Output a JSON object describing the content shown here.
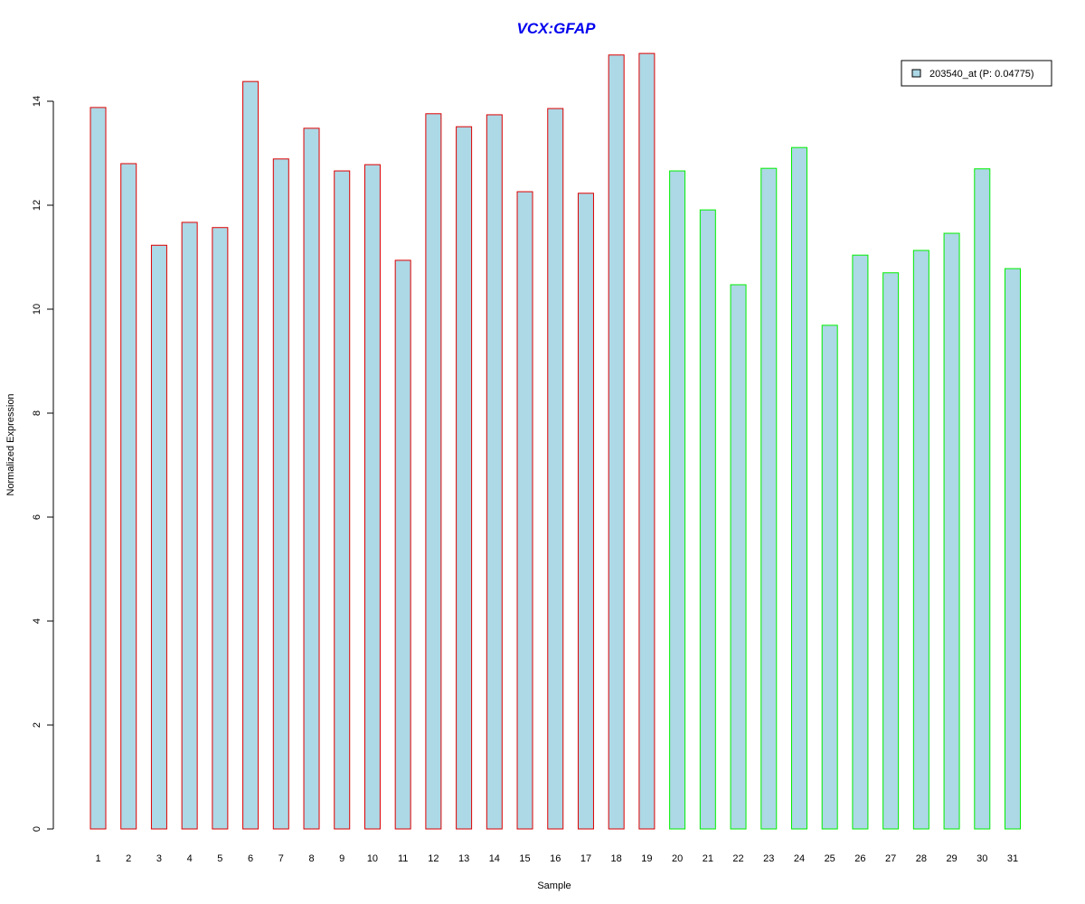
{
  "chart_data": {
    "type": "bar",
    "title": "VCX:GFAP",
    "xlabel": "Sample",
    "ylabel": "Normalized Expression",
    "ylim": [
      0,
      15
    ],
    "yticks": [
      0,
      2,
      4,
      6,
      8,
      10,
      12,
      14
    ],
    "categories": [
      "1",
      "2",
      "3",
      "4",
      "5",
      "6",
      "7",
      "8",
      "9",
      "10",
      "11",
      "12",
      "13",
      "14",
      "15",
      "16",
      "17",
      "18",
      "19",
      "20",
      "21",
      "22",
      "23",
      "24",
      "25",
      "26",
      "27",
      "28",
      "29",
      "30",
      "31"
    ],
    "values": [
      13.88,
      12.8,
      11.23,
      11.67,
      11.57,
      14.38,
      12.89,
      13.48,
      12.66,
      12.78,
      10.94,
      13.76,
      13.51,
      13.74,
      12.26,
      13.86,
      12.23,
      14.89,
      14.92,
      12.66,
      11.91,
      10.47,
      12.71,
      13.11,
      9.69,
      11.04,
      10.7,
      11.13,
      11.46,
      12.7,
      10.78
    ],
    "groups": [
      "red",
      "red",
      "red",
      "red",
      "red",
      "red",
      "red",
      "red",
      "red",
      "red",
      "red",
      "red",
      "red",
      "red",
      "red",
      "red",
      "red",
      "red",
      "red",
      "green",
      "green",
      "green",
      "green",
      "green",
      "green",
      "green",
      "green",
      "green",
      "green",
      "green",
      "green"
    ],
    "fill_color": "#add8e6",
    "border_colors": {
      "red": "#dd0000",
      "green": "#00ee00"
    },
    "legend": {
      "label": "203540_at (P: 0.04775)",
      "position": "top-right"
    },
    "grid": false
  }
}
